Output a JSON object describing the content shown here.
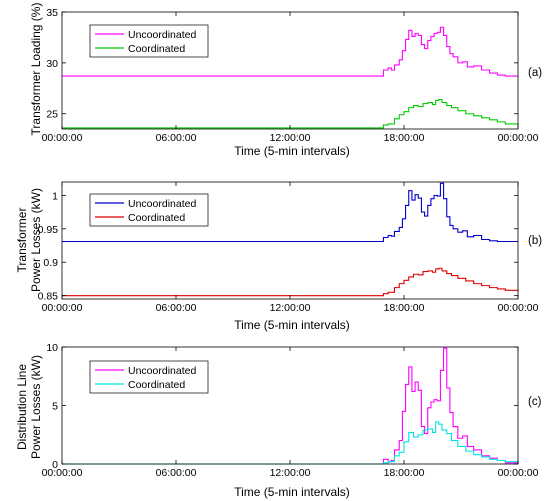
{
  "chart_data": [
    {
      "type": "line",
      "panel_label": "(a)",
      "ylabel": "Transformer Loading (%)",
      "xlabel": "Time (5-min intervals)",
      "ylim": [
        23.5,
        35
      ],
      "yticks": [
        25,
        30,
        35
      ],
      "xlim": [
        0,
        288
      ],
      "xticks": [
        0,
        72,
        144,
        216,
        288
      ],
      "xticklabels": [
        "00:00:00",
        "06:00:00",
        "12:00:00",
        "18:00:00",
        "00:00:00"
      ],
      "grid": false,
      "legend_position": "top-left",
      "series": [
        {
          "name": "Uncoordinated",
          "color": "#ff00ff",
          "points": [
            [
              0,
              28.7
            ],
            [
              200,
              28.7
            ],
            [
              203,
              29.3
            ],
            [
              206,
              29.5
            ],
            [
              208,
              29.3
            ],
            [
              210,
              29.8
            ],
            [
              213,
              30.3
            ],
            [
              215,
              31.2
            ],
            [
              217,
              32.3
            ],
            [
              219,
              33.2
            ],
            [
              221,
              32.6
            ],
            [
              223,
              32.9
            ],
            [
              225,
              32.7
            ],
            [
              227,
              31.8
            ],
            [
              229,
              31.4
            ],
            [
              231,
              32.2
            ],
            [
              233,
              32.6
            ],
            [
              235,
              32.9
            ],
            [
              237,
              33.0
            ],
            [
              239,
              33.5
            ],
            [
              241,
              32.7
            ],
            [
              243,
              31.6
            ],
            [
              245,
              30.9
            ],
            [
              247,
              30.6
            ],
            [
              250,
              30.0
            ],
            [
              253,
              30.1
            ],
            [
              256,
              29.6
            ],
            [
              260,
              29.7
            ],
            [
              265,
              29.3
            ],
            [
              270,
              29.0
            ],
            [
              275,
              28.8
            ],
            [
              280,
              28.7
            ],
            [
              288,
              28.7
            ]
          ]
        },
        {
          "name": "Coordinated",
          "color": "#00cc00",
          "points": [
            [
              0,
              23.6
            ],
            [
              200,
              23.6
            ],
            [
              203,
              23.9
            ],
            [
              206,
              24.0
            ],
            [
              208,
              24.0
            ],
            [
              210,
              24.5
            ],
            [
              213,
              24.9
            ],
            [
              216,
              25.2
            ],
            [
              219,
              25.6
            ],
            [
              222,
              25.8
            ],
            [
              225,
              25.7
            ],
            [
              228,
              26.0
            ],
            [
              231,
              26.1
            ],
            [
              234,
              25.9
            ],
            [
              236,
              26.3
            ],
            [
              238,
              26.4
            ],
            [
              240,
              26.1
            ],
            [
              243,
              25.8
            ],
            [
              246,
              25.6
            ],
            [
              250,
              25.3
            ],
            [
              255,
              25.0
            ],
            [
              260,
              24.8
            ],
            [
              265,
              24.6
            ],
            [
              270,
              24.4
            ],
            [
              275,
              24.2
            ],
            [
              280,
              24.0
            ],
            [
              288,
              23.9
            ]
          ]
        }
      ]
    },
    {
      "type": "line",
      "panel_label": "(b)",
      "ylabel": "Transformer Power Losses (kW)",
      "ylabel_lines": [
        "Transformer",
        "Power Losses (kW)"
      ],
      "xlabel": "Time (5-min intervals)",
      "ylim": [
        0.845,
        1.02
      ],
      "yticks": [
        0.85,
        0.9,
        0.95,
        1.0
      ],
      "yticklabels": [
        "0.85",
        "0.9",
        "0.95",
        "1"
      ],
      "xlim": [
        0,
        288
      ],
      "xticks": [
        0,
        72,
        144,
        216,
        288
      ],
      "xticklabels": [
        "00:00:00",
        "06:00:00",
        "12:00:00",
        "18:00:00",
        "00:00:00"
      ],
      "grid": false,
      "legend_position": "top-left",
      "series": [
        {
          "name": "Uncoordinated",
          "color": "#0000cc",
          "points": [
            [
              0,
              0.931
            ],
            [
              200,
              0.931
            ],
            [
              203,
              0.937
            ],
            [
              206,
              0.94
            ],
            [
              208,
              0.939
            ],
            [
              210,
              0.946
            ],
            [
              213,
              0.952
            ],
            [
              215,
              0.965
            ],
            [
              217,
              0.985
            ],
            [
              219,
              1.007
            ],
            [
              221,
              0.993
            ],
            [
              223,
              1.001
            ],
            [
              225,
              0.996
            ],
            [
              227,
              0.975
            ],
            [
              229,
              0.969
            ],
            [
              231,
              0.985
            ],
            [
              233,
              0.995
            ],
            [
              235,
              1.0
            ],
            [
              237,
              0.999
            ],
            [
              239,
              1.018
            ],
            [
              241,
              0.995
            ],
            [
              243,
              0.968
            ],
            [
              245,
              0.955
            ],
            [
              247,
              0.95
            ],
            [
              250,
              0.945
            ],
            [
              253,
              0.947
            ],
            [
              256,
              0.938
            ],
            [
              260,
              0.94
            ],
            [
              265,
              0.934
            ],
            [
              270,
              0.932
            ],
            [
              275,
              0.931
            ],
            [
              288,
              0.931
            ]
          ]
        },
        {
          "name": "Coordinated",
          "color": "#dd0000",
          "points": [
            [
              0,
              0.85
            ],
            [
              200,
              0.85
            ],
            [
              203,
              0.853
            ],
            [
              206,
              0.855
            ],
            [
              208,
              0.855
            ],
            [
              210,
              0.862
            ],
            [
              213,
              0.868
            ],
            [
              216,
              0.873
            ],
            [
              219,
              0.878
            ],
            [
              222,
              0.882
            ],
            [
              225,
              0.881
            ],
            [
              228,
              0.886
            ],
            [
              231,
              0.887
            ],
            [
              234,
              0.885
            ],
            [
              236,
              0.89
            ],
            [
              238,
              0.891
            ],
            [
              240,
              0.887
            ],
            [
              243,
              0.883
            ],
            [
              246,
              0.88
            ],
            [
              250,
              0.876
            ],
            [
              255,
              0.872
            ],
            [
              260,
              0.868
            ],
            [
              265,
              0.865
            ],
            [
              270,
              0.862
            ],
            [
              275,
              0.86
            ],
            [
              280,
              0.858
            ],
            [
              288,
              0.856
            ]
          ]
        }
      ]
    },
    {
      "type": "line",
      "panel_label": "(c)",
      "ylabel": "Distribution Line Power Losses (kW)",
      "ylabel_lines": [
        "Distribution Line",
        "Power Losses (kW)"
      ],
      "xlabel": "Time (5-min intervals)",
      "ylim": [
        0,
        10
      ],
      "yticks": [
        0,
        5,
        10
      ],
      "xlim": [
        0,
        288
      ],
      "xticks": [
        0,
        72,
        144,
        216,
        288
      ],
      "xticklabels": [
        "00:00:00",
        "06:00:00",
        "12:00:00",
        "18:00:00",
        "00:00:00"
      ],
      "grid": false,
      "legend_position": "top-left",
      "series": [
        {
          "name": "Uncoordinated",
          "color": "#ff00ff",
          "points": [
            [
              0,
              0
            ],
            [
              200,
              0
            ],
            [
              203,
              0.4
            ],
            [
              206,
              0.2
            ],
            [
              208,
              0.3
            ],
            [
              210,
              1.2
            ],
            [
              213,
              2.0
            ],
            [
              215,
              4.5
            ],
            [
              217,
              6.8
            ],
            [
              219,
              8.3
            ],
            [
              221,
              6.2
            ],
            [
              223,
              7.0
            ],
            [
              225,
              6.3
            ],
            [
              227,
              3.2
            ],
            [
              229,
              2.6
            ],
            [
              231,
              4.8
            ],
            [
              233,
              5.3
            ],
            [
              235,
              5.5
            ],
            [
              237,
              5.4
            ],
            [
              239,
              8.0
            ],
            [
              241,
              9.9
            ],
            [
              243,
              6.5
            ],
            [
              245,
              4.4
            ],
            [
              247,
              3.2
            ],
            [
              250,
              2.2
            ],
            [
              253,
              2.4
            ],
            [
              256,
              1.5
            ],
            [
              260,
              1.2
            ],
            [
              265,
              0.7
            ],
            [
              270,
              0.5
            ],
            [
              275,
              0.3
            ],
            [
              280,
              0.1
            ],
            [
              288,
              0
            ]
          ]
        },
        {
          "name": "Coordinated",
          "color": "#00e5e5",
          "points": [
            [
              0,
              0
            ],
            [
              200,
              0
            ],
            [
              203,
              0.1
            ],
            [
              206,
              0.2
            ],
            [
              208,
              0.2
            ],
            [
              210,
              0.7
            ],
            [
              213,
              1.0
            ],
            [
              216,
              1.9
            ],
            [
              219,
              2.7
            ],
            [
              222,
              2.3
            ],
            [
              225,
              2.5
            ],
            [
              228,
              2.9
            ],
            [
              231,
              3.0
            ],
            [
              234,
              2.7
            ],
            [
              236,
              3.6
            ],
            [
              238,
              3.4
            ],
            [
              240,
              2.9
            ],
            [
              243,
              2.6
            ],
            [
              246,
              2.0
            ],
            [
              250,
              1.5
            ],
            [
              255,
              1.1
            ],
            [
              260,
              0.8
            ],
            [
              265,
              0.6
            ],
            [
              270,
              0.4
            ],
            [
              275,
              0.3
            ],
            [
              280,
              0.2
            ],
            [
              288,
              0.1
            ]
          ]
        }
      ]
    }
  ]
}
